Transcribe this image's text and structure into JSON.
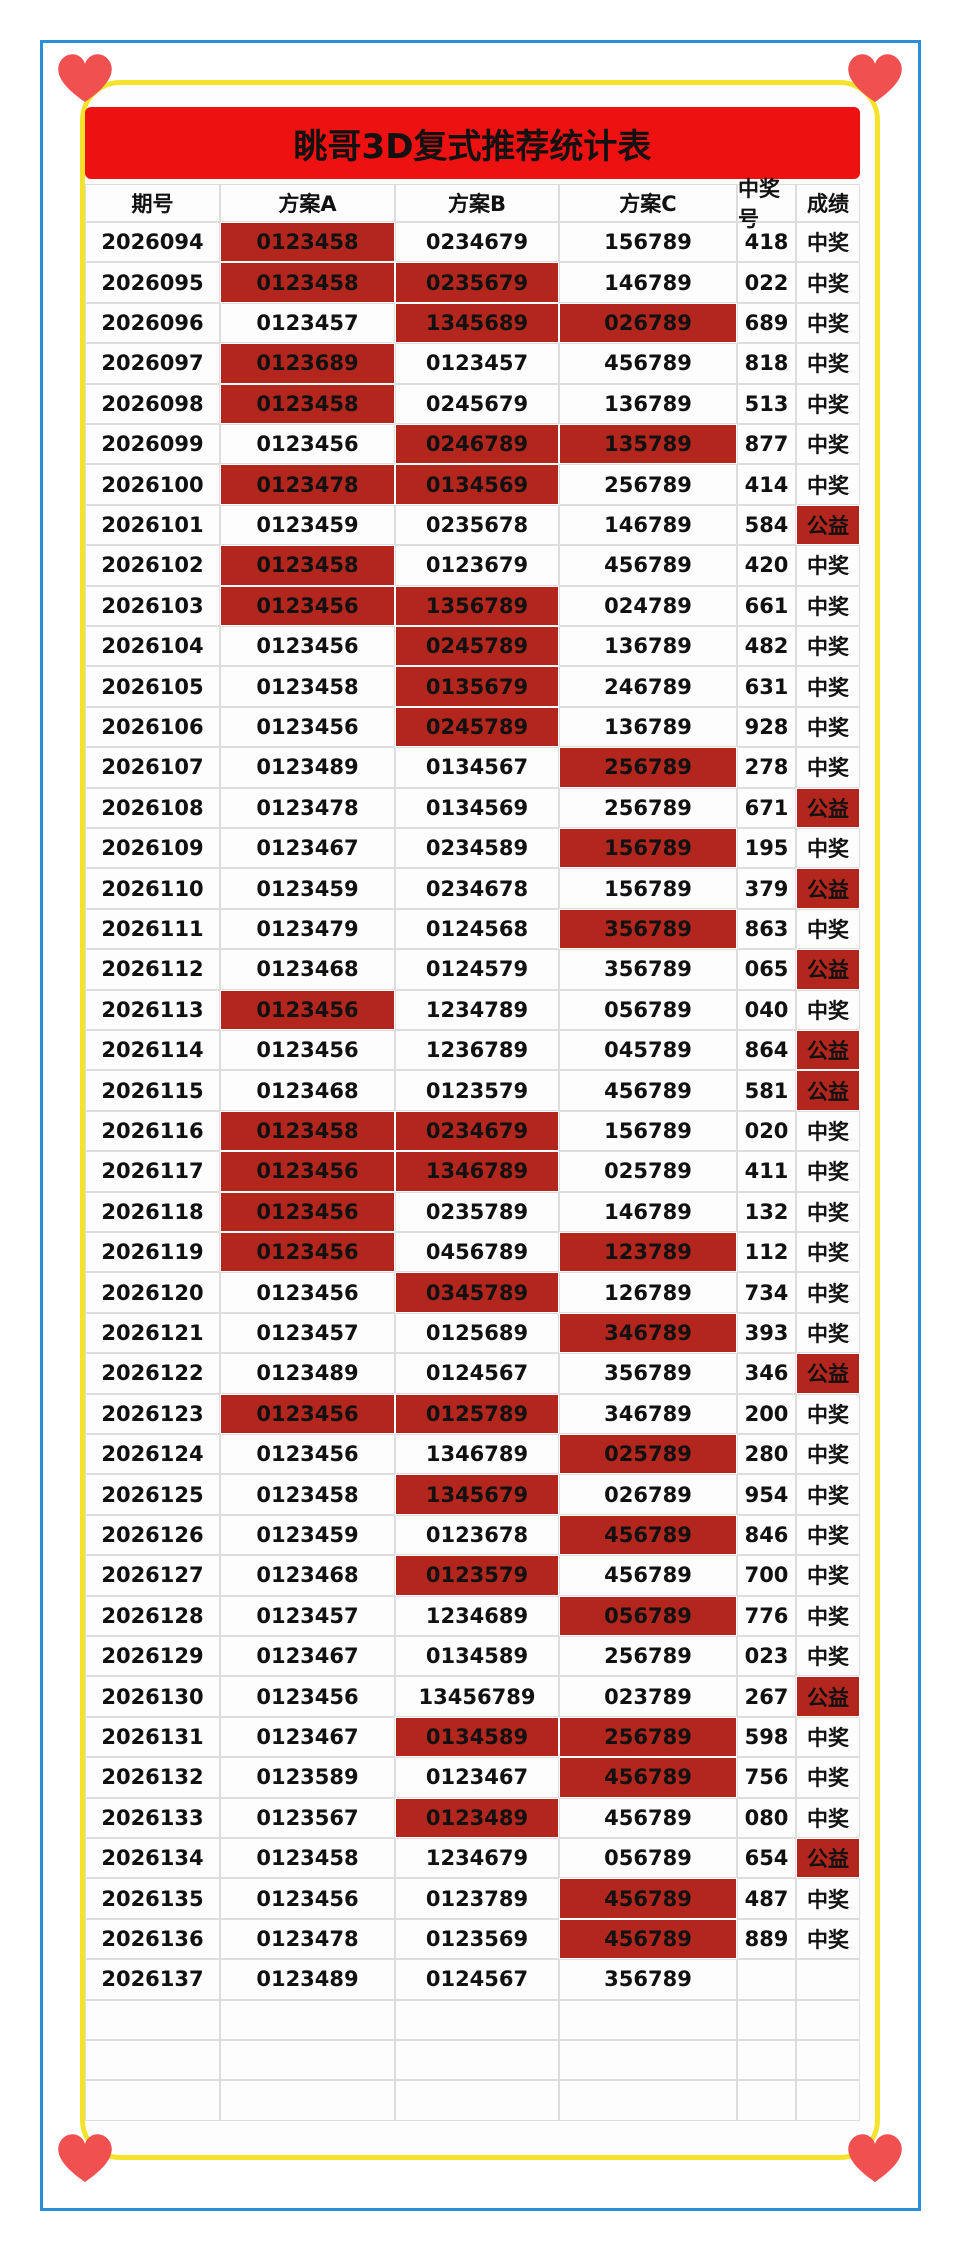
{
  "header": {
    "title": "眺哥3D复式推荐统计表"
  },
  "table": {
    "columns": [
      "期号",
      "方案A",
      "方案B",
      "方案C",
      "中奖号",
      "成绩"
    ],
    "rows": [
      [
        "2026094",
        "0123458",
        "0234679",
        "156789",
        "418",
        "中奖"
      ],
      [
        "2026095",
        "0123458",
        "0235679",
        "146789",
        "022",
        "中奖"
      ],
      [
        "2026096",
        "0123457",
        "1345689",
        "026789",
        "689",
        "中奖"
      ],
      [
        "2026097",
        "0123689",
        "0123457",
        "456789",
        "818",
        "中奖"
      ],
      [
        "2026098",
        "0123458",
        "0245679",
        "136789",
        "513",
        "中奖"
      ],
      [
        "2026099",
        "0123456",
        "0246789",
        "135789",
        "877",
        "中奖"
      ],
      [
        "2026100",
        "0123478",
        "0134569",
        "256789",
        "414",
        "中奖"
      ],
      [
        "2026101",
        "0123459",
        "0235678",
        "146789",
        "584",
        "公益"
      ],
      [
        "2026102",
        "0123458",
        "0123679",
        "456789",
        "420",
        "中奖"
      ],
      [
        "2026103",
        "0123456",
        "1356789",
        "024789",
        "661",
        "中奖"
      ],
      [
        "2026104",
        "0123456",
        "0245789",
        "136789",
        "482",
        "中奖"
      ],
      [
        "2026105",
        "0123458",
        "0135679",
        "246789",
        "631",
        "中奖"
      ],
      [
        "2026106",
        "0123456",
        "0245789",
        "136789",
        "928",
        "中奖"
      ],
      [
        "2026107",
        "0123489",
        "0134567",
        "256789",
        "278",
        "中奖"
      ],
      [
        "2026108",
        "0123478",
        "0134569",
        "256789",
        "671",
        "公益"
      ],
      [
        "2026109",
        "0123467",
        "0234589",
        "156789",
        "195",
        "中奖"
      ],
      [
        "2026110",
        "0123459",
        "0234678",
        "156789",
        "379",
        "公益"
      ],
      [
        "2026111",
        "0123479",
        "0124568",
        "356789",
        "863",
        "中奖"
      ],
      [
        "2026112",
        "0123468",
        "0124579",
        "356789",
        "065",
        "公益"
      ],
      [
        "2026113",
        "0123456",
        "1234789",
        "056789",
        "040",
        "中奖"
      ],
      [
        "2026114",
        "0123456",
        "1236789",
        "045789",
        "864",
        "公益"
      ],
      [
        "2026115",
        "0123468",
        "0123579",
        "456789",
        "581",
        "公益"
      ],
      [
        "2026116",
        "0123458",
        "0234679",
        "156789",
        "020",
        "中奖"
      ],
      [
        "2026117",
        "0123456",
        "1346789",
        "025789",
        "411",
        "中奖"
      ],
      [
        "2026118",
        "0123456",
        "0235789",
        "146789",
        "132",
        "中奖"
      ],
      [
        "2026119",
        "0123456",
        "0456789",
        "123789",
        "112",
        "中奖"
      ],
      [
        "2026120",
        "0123456",
        "0345789",
        "126789",
        "734",
        "中奖"
      ],
      [
        "2026121",
        "0123457",
        "0125689",
        "346789",
        "393",
        "中奖"
      ],
      [
        "2026122",
        "0123489",
        "0124567",
        "356789",
        "346",
        "公益"
      ],
      [
        "2026123",
        "0123456",
        "0125789",
        "346789",
        "200",
        "中奖"
      ],
      [
        "2026124",
        "0123456",
        "1346789",
        "025789",
        "280",
        "中奖"
      ],
      [
        "2026125",
        "0123458",
        "1345679",
        "026789",
        "954",
        "中奖"
      ],
      [
        "2026126",
        "0123459",
        "0123678",
        "456789",
        "846",
        "中奖"
      ],
      [
        "2026127",
        "0123468",
        "0123579",
        "456789",
        "700",
        "中奖"
      ],
      [
        "2026128",
        "0123457",
        "1234689",
        "056789",
        "776",
        "中奖"
      ],
      [
        "2026129",
        "0123467",
        "0134589",
        "256789",
        "023",
        "中奖"
      ],
      [
        "2026130",
        "0123456",
        "13456789",
        "023789",
        "267",
        "公益"
      ],
      [
        "2026131",
        "0123467",
        "0134589",
        "256789",
        "598",
        "中奖"
      ],
      [
        "2026132",
        "0123589",
        "0123467",
        "456789",
        "756",
        "中奖"
      ],
      [
        "2026133",
        "0123567",
        "0123489",
        "456789",
        "080",
        "中奖"
      ],
      [
        "2026134",
        "0123458",
        "1234679",
        "056789",
        "654",
        "公益"
      ],
      [
        "2026135",
        "0123456",
        "0123789",
        "456789",
        "487",
        "中奖"
      ],
      [
        "2026136",
        "0123478",
        "0123569",
        "456789",
        "889",
        "中奖"
      ],
      [
        "2026137",
        "0123489",
        "0124567",
        "356789"
      ]
    ],
    "highlighted_columns": [
      [
        1
      ],
      [
        1,
        2
      ],
      [
        2,
        3
      ],
      [
        1
      ],
      [
        1
      ],
      [
        2,
        3
      ],
      [
        1,
        2
      ],
      [
        5
      ],
      [
        1
      ],
      [
        1,
        2
      ],
      [
        2
      ],
      [
        2
      ],
      [
        2
      ],
      [
        3
      ],
      [
        5
      ],
      [
        3
      ],
      [
        5
      ],
      [
        3
      ],
      [
        5
      ],
      [
        1
      ],
      [
        5
      ],
      [
        5
      ],
      [
        1,
        2
      ],
      [
        1,
        2
      ],
      [
        1
      ],
      [
        1,
        3
      ],
      [
        2
      ],
      [
        3
      ],
      [
        5
      ],
      [
        1,
        2
      ],
      [
        3
      ],
      [
        2
      ],
      [
        3
      ],
      [
        2
      ],
      [
        3
      ],
      [],
      [
        5
      ],
      [
        2,
        3
      ],
      [
        3
      ],
      [
        2
      ],
      [
        5
      ],
      [
        3
      ],
      [
        3
      ],
      []
    ],
    "highlight_color": "#b3261e"
  }
}
